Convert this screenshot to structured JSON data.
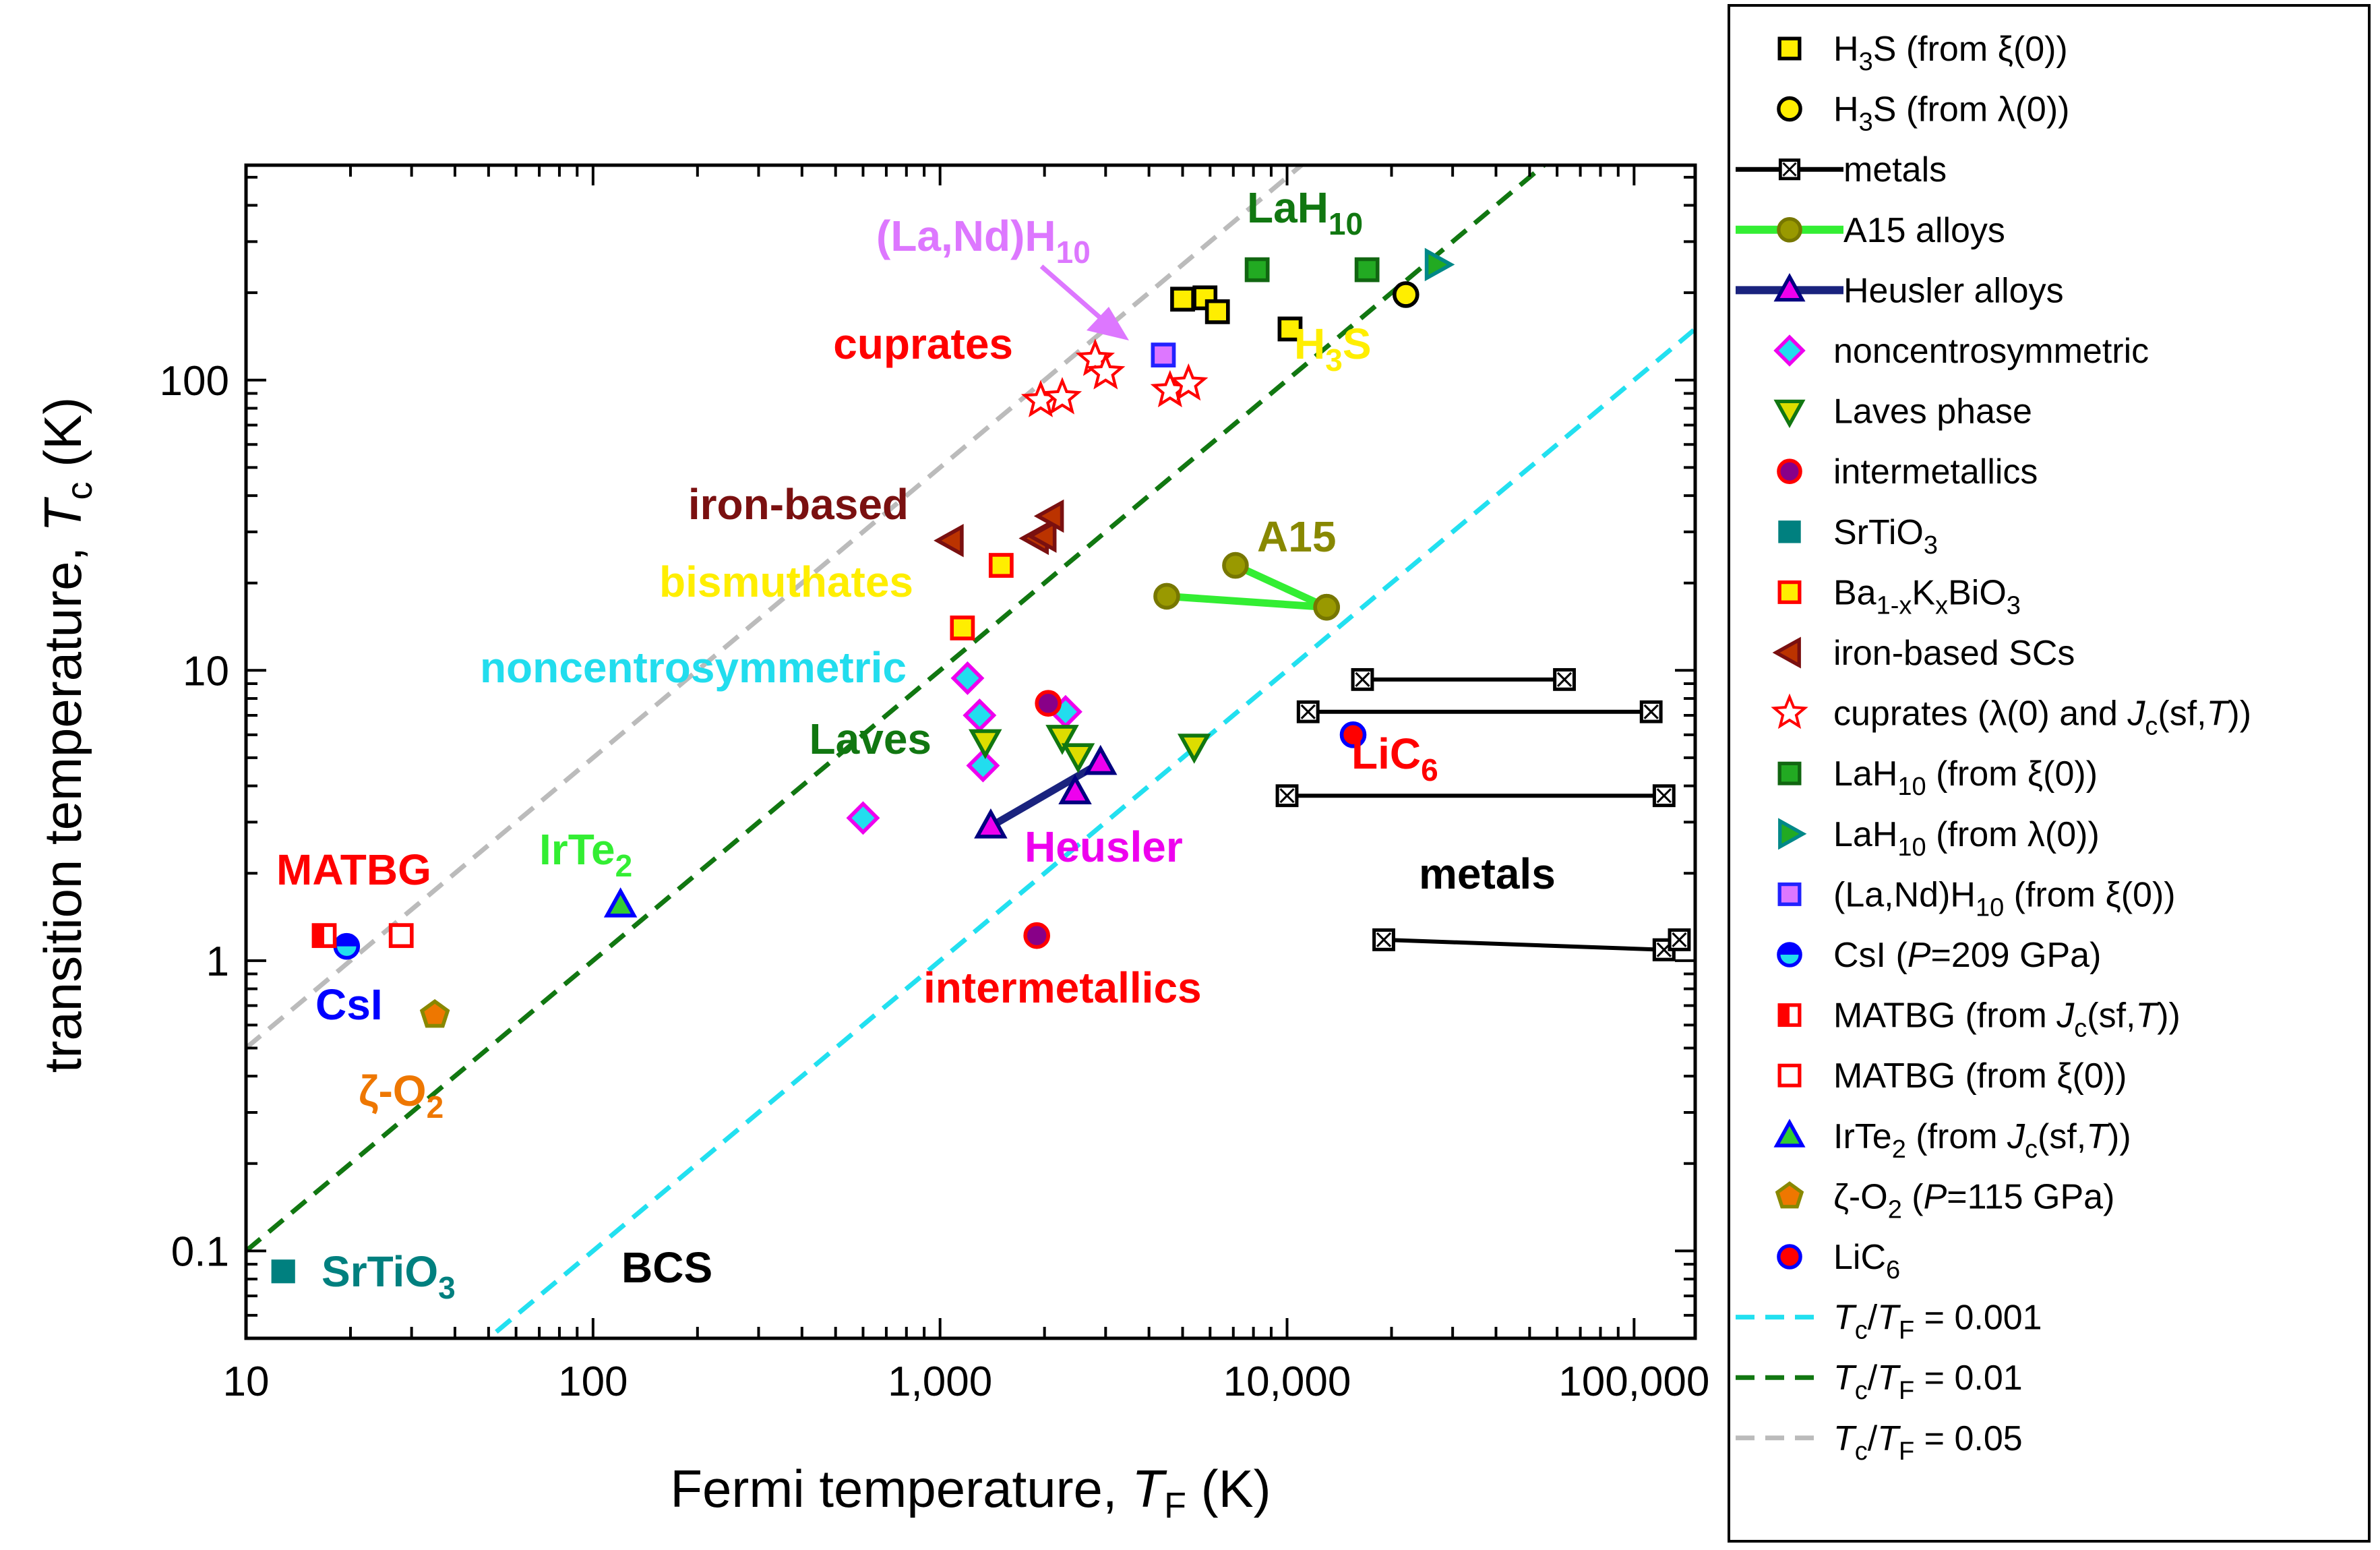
{
  "chart_data": {
    "type": "scatter",
    "xscale": "log",
    "yscale": "log",
    "xlim": [
      10,
      150000
    ],
    "ylim": [
      0.05,
      550
    ],
    "xlabel": "Fermi temperature, ",
    "xlabel_var": "T",
    "xlabel_sub": "F",
    "xlabel_unit": " (K)",
    "ylabel": "transition temperature, ",
    "ylabel_var": "T",
    "ylabel_sub": "c",
    "ylabel_unit": " (K)",
    "x_ticks": [
      {
        "value": 10,
        "label": "10"
      },
      {
        "value": 100,
        "label": "100"
      },
      {
        "value": 1000,
        "label": "1,000"
      },
      {
        "value": 10000,
        "label": "10,000"
      },
      {
        "value": 100000,
        "label": "100,000"
      }
    ],
    "y_ticks": [
      {
        "value": 0.1,
        "label": "0.1"
      },
      {
        "value": 1,
        "label": "1"
      },
      {
        "value": 10,
        "label": "10"
      },
      {
        "value": 100,
        "label": "100"
      }
    ],
    "reference_lines": [
      {
        "name": "Tc/TF = 0.001",
        "ratio": 0.001,
        "color": "#22e0f0"
      },
      {
        "name": "Tc/TF = 0.01",
        "ratio": 0.01,
        "color": "#117711"
      },
      {
        "name": "Tc/TF = 0.05",
        "ratio": 0.05,
        "color": "#bbbbbb"
      }
    ],
    "series": [
      {
        "name": "H3S (from ξ(0))",
        "marker": "square",
        "fill": "#ffee00",
        "stroke": "#000000",
        "points": [
          [
            5000,
            190
          ],
          [
            5800,
            192
          ],
          [
            6300,
            172
          ],
          [
            10200,
            150
          ]
        ]
      },
      {
        "name": "H3S (from λ(0))",
        "marker": "circle",
        "fill": "#ffee00",
        "stroke": "#000000",
        "points": [
          [
            22000,
            197
          ]
        ]
      },
      {
        "name": "metals",
        "marker": "xsquare",
        "fill": "#ffffff",
        "stroke": "#000000",
        "line": true,
        "lineColor": "#000000",
        "segments": [
          [
            [
              16500,
              9.3
            ],
            [
              63000,
              9.3
            ]
          ],
          [
            [
              11500,
              7.2
            ],
            [
              112000,
              7.2
            ]
          ],
          [
            [
              10000,
              3.7
            ],
            [
              122000,
              3.7
            ]
          ],
          [
            [
              19000,
              1.18
            ],
            [
              122000,
              1.09
            ]
          ],
          [
            [
              122000,
              1.09
            ],
            [
              135000,
              1.18
            ]
          ]
        ]
      },
      {
        "name": "A15 alloys",
        "marker": "circle",
        "fill": "#999900",
        "stroke": "#777700",
        "line": true,
        "lineColor": "#33ee33",
        "segments": [
          [
            [
              4500,
              18
            ],
            [
              13000,
              16.5
            ]
          ],
          [
            [
              7100,
              23
            ],
            [
              13000,
              16.5
            ]
          ]
        ]
      },
      {
        "name": "Heusler alloys",
        "marker": "triangle-up",
        "fill": "#ee00ee",
        "stroke": "#000080",
        "line": true,
        "lineColor": "#1a237e",
        "segments": [
          [
            [
              1400,
              2.9
            ],
            [
              2900,
              4.8
            ]
          ]
        ],
        "points": [
          [
            2450,
            3.8
          ]
        ]
      },
      {
        "name": "noncentrosymmetric",
        "marker": "diamond",
        "fill": "#22ddee",
        "stroke": "#ee00ee",
        "points": [
          [
            600,
            3.1
          ],
          [
            1200,
            9.4
          ],
          [
            1300,
            7
          ],
          [
            1330,
            4.7
          ],
          [
            2300,
            7.2
          ]
        ]
      },
      {
        "name": "Laves phase",
        "marker": "triangle-down",
        "fill": "#dddd00",
        "stroke": "#117711",
        "points": [
          [
            1350,
            5.7
          ],
          [
            2250,
            5.9
          ],
          [
            2500,
            5.1
          ],
          [
            5400,
            5.5
          ]
        ]
      },
      {
        "name": "intermetallics",
        "marker": "circle",
        "fill": "#880088",
        "stroke": "#ff0000",
        "points": [
          [
            1900,
            1.22
          ],
          [
            2050,
            7.7
          ]
        ]
      },
      {
        "name": "SrTiO3",
        "marker": "square-solid",
        "fill": "#00807f",
        "stroke": "#00807f",
        "points": [
          [
            12.8,
            0.085
          ]
        ]
      },
      {
        "name": "Ba1-xKxBiO3",
        "marker": "square",
        "fill": "#ffee00",
        "stroke": "#ff0000",
        "points": [
          [
            1160,
            14
          ],
          [
            1500,
            23
          ]
        ]
      },
      {
        "name": "iron-based SCs",
        "marker": "triangle-left",
        "fill": "#bb3300",
        "stroke": "#7a1010",
        "points": [
          [
            1080,
            28
          ],
          [
            1900,
            28.5
          ],
          [
            2000,
            29
          ],
          [
            2100,
            34
          ]
        ]
      },
      {
        "name": "cuprates (λ(0) and Jc(sf,T))",
        "marker": "star",
        "fill": "#ffffff",
        "stroke": "#ff0000",
        "points": [
          [
            1950,
            85
          ],
          [
            2250,
            87
          ],
          [
            2800,
            118
          ],
          [
            3000,
            106
          ],
          [
            4600,
            92
          ],
          [
            5200,
            97
          ]
        ]
      },
      {
        "name": "LaH10 (from ξ(0))",
        "marker": "square",
        "fill": "#22aa22",
        "stroke": "#116611",
        "points": [
          [
            8200,
            240
          ],
          [
            17000,
            240
          ]
        ]
      },
      {
        "name": "LaH10 (from λ(0))",
        "marker": "triangle-right",
        "fill": "#22aa22",
        "stroke": "#008888",
        "points": [
          [
            27000,
            250
          ]
        ]
      },
      {
        "name": "(La,Nd)H10 (from ξ(0))",
        "marker": "square",
        "fill": "#dd77ff",
        "stroke": "#2222ff",
        "points": [
          [
            4400,
            122
          ]
        ]
      },
      {
        "name": "CsI (P=209 GPa)",
        "marker": "half-circle",
        "fill": "#22ddee",
        "stroke": "#0000ff",
        "points": [
          [
            19.5,
            1.12
          ]
        ]
      },
      {
        "name": "MATBG (from Jc(sf,T))",
        "marker": "half-square",
        "fill": "#ffffff",
        "stroke": "#ff0000",
        "points": [
          [
            16.8,
            1.22
          ]
        ]
      },
      {
        "name": "MATBG (from ξ(0))",
        "marker": "square",
        "fill": "#ffffff",
        "stroke": "#ff0000",
        "points": [
          [
            28,
            1.22
          ]
        ]
      },
      {
        "name": "IrTe2 (from Jc(sf,T))",
        "marker": "triangle-up",
        "fill": "#33cc33",
        "stroke": "#0000ff",
        "points": [
          [
            120,
            1.55
          ]
        ]
      },
      {
        "name": "ζ-O2 (P=115 GPa)",
        "marker": "pentagon",
        "fill": "#ee7700",
        "stroke": "#888800",
        "points": [
          [
            35,
            0.65
          ]
        ]
      },
      {
        "name": "LiC6",
        "marker": "circle",
        "fill": "#ff0000",
        "stroke": "#0000ff",
        "points": [
          [
            15500,
            6
          ]
        ]
      }
    ],
    "annotations": [
      {
        "text": "(La,Nd)H",
        "sub": "10",
        "color": "#dd77ff"
      },
      {
        "text": "LaH",
        "sub": "10",
        "color": "#117711"
      },
      {
        "text": "cuprates",
        "sub": "",
        "color": "#ff0000"
      },
      {
        "text": "H",
        "sub": "3",
        "text2": "S",
        "color": "#ffee00"
      },
      {
        "text": "iron-based",
        "sub": "",
        "color": "#7a1010"
      },
      {
        "text": "A15",
        "sub": "",
        "color": "#888800"
      },
      {
        "text": "bismuthates",
        "sub": "",
        "color": "#ffee00"
      },
      {
        "text": "noncentrosymmetric",
        "sub": "",
        "color": "#22ddee"
      },
      {
        "text": "Laves",
        "sub": "",
        "color": "#117711"
      },
      {
        "text": "LiC",
        "sub": "6",
        "color": "#ff0000"
      },
      {
        "text": "Heusler",
        "sub": "",
        "color": "#ee00ee"
      },
      {
        "text": "metals",
        "sub": "",
        "color": "#000000"
      },
      {
        "text": "MATBG",
        "sub": "",
        "color": "#ff0000"
      },
      {
        "text": "IrTe",
        "sub": "2",
        "color": "#33ee33"
      },
      {
        "text": "intermetallics",
        "sub": "",
        "color": "#ff0000"
      },
      {
        "text": "CsI",
        "sub": "",
        "color": "#0000ff"
      },
      {
        "text": "ζ-O",
        "sub": "2",
        "color": "#ee7700"
      },
      {
        "text": "SrTiO",
        "sub": "3",
        "color": "#00807f"
      },
      {
        "text": "BCS",
        "sub": "",
        "color": "#000000"
      }
    ],
    "legend": [
      {
        "marker": "square",
        "fill": "#ffee00",
        "stroke": "#000000",
        "parts": [
          [
            "H",
            ""
          ],
          [
            "3",
            "sub"
          ],
          [
            "S (from ξ(0))",
            ""
          ]
        ]
      },
      {
        "marker": "circle",
        "fill": "#ffee00",
        "stroke": "#000000",
        "parts": [
          [
            "H",
            ""
          ],
          [
            "3",
            "sub"
          ],
          [
            "S (from λ(0))",
            ""
          ]
        ]
      },
      {
        "marker": "xsquare",
        "fill": "#ffffff",
        "stroke": "#000000",
        "line": "#000000",
        "parts": [
          [
            "metals",
            ""
          ]
        ]
      },
      {
        "marker": "circle",
        "fill": "#999900",
        "stroke": "#777700",
        "line": "#33ee33",
        "parts": [
          [
            "A15 alloys",
            ""
          ]
        ]
      },
      {
        "marker": "triangle-up",
        "fill": "#ee00ee",
        "stroke": "#000080",
        "line": "#1a237e",
        "parts": [
          [
            "Heusler alloys",
            ""
          ]
        ]
      },
      {
        "marker": "diamond",
        "fill": "#22ddee",
        "stroke": "#ee00ee",
        "parts": [
          [
            "noncentrosymmetric",
            ""
          ]
        ]
      },
      {
        "marker": "triangle-down",
        "fill": "#dddd00",
        "stroke": "#117711",
        "parts": [
          [
            "Laves phase",
            ""
          ]
        ]
      },
      {
        "marker": "circle",
        "fill": "#880088",
        "stroke": "#ff0000",
        "parts": [
          [
            " intermetallics",
            ""
          ]
        ]
      },
      {
        "marker": "square-solid",
        "fill": "#00807f",
        "stroke": "#00807f",
        "parts": [
          [
            "SrTiO",
            ""
          ],
          [
            "3",
            "sub"
          ]
        ]
      },
      {
        "marker": "square",
        "fill": "#ffee00",
        "stroke": "#ff0000",
        "parts": [
          [
            " Ba",
            ""
          ],
          [
            "1-x",
            "sub"
          ],
          [
            "K",
            ""
          ],
          [
            "x",
            "sub"
          ],
          [
            "BiO",
            ""
          ],
          [
            "3",
            "sub"
          ]
        ]
      },
      {
        "marker": "triangle-left",
        "fill": "#bb3300",
        "stroke": "#7a1010",
        "parts": [
          [
            "iron-based SCs",
            ""
          ]
        ]
      },
      {
        "marker": "star",
        "fill": "#ffffff",
        "stroke": "#ff0000",
        "parts": [
          [
            "cuprates (λ(0) and ",
            ""
          ],
          [
            "J",
            "it"
          ],
          [
            "c",
            "sub"
          ],
          [
            "(sf,",
            ""
          ],
          [
            "T",
            "it"
          ],
          [
            "))",
            ""
          ]
        ]
      },
      {
        "marker": "square",
        "fill": "#22aa22",
        "stroke": "#116611",
        "parts": [
          [
            "LaH",
            ""
          ],
          [
            "10",
            "sub"
          ],
          [
            " (from ξ(0))",
            ""
          ]
        ]
      },
      {
        "marker": "triangle-right",
        "fill": "#22aa22",
        "stroke": "#008888",
        "parts": [
          [
            "LaH",
            ""
          ],
          [
            "10",
            "sub"
          ],
          [
            " (from λ(0))",
            ""
          ]
        ]
      },
      {
        "marker": "square",
        "fill": "#dd77ff",
        "stroke": "#2222ff",
        "parts": [
          [
            "(La,Nd)H",
            ""
          ],
          [
            "10",
            "sub"
          ],
          [
            " (from ξ(0))",
            ""
          ]
        ]
      },
      {
        "marker": "half-circle",
        "fill": "#22ddee",
        "stroke": "#0000ff",
        "parts": [
          [
            "CsI (",
            ""
          ],
          [
            "P",
            "it"
          ],
          [
            "=209 GPa)",
            ""
          ]
        ]
      },
      {
        "marker": "half-square",
        "fill": "#ffffff",
        "stroke": "#ff0000",
        "parts": [
          [
            "MATBG (from ",
            ""
          ],
          [
            "J",
            "it"
          ],
          [
            "c",
            "sub"
          ],
          [
            "(sf,",
            ""
          ],
          [
            "T",
            "it"
          ],
          [
            "))",
            ""
          ]
        ]
      },
      {
        "marker": "square",
        "fill": "#ffffff",
        "stroke": "#ff0000",
        "parts": [
          [
            "MATBG (from ξ(0))",
            ""
          ]
        ]
      },
      {
        "marker": "triangle-up",
        "fill": "#33cc33",
        "stroke": "#0000ff",
        "parts": [
          [
            "IrTe",
            ""
          ],
          [
            "2",
            "sub"
          ],
          [
            " (from ",
            ""
          ],
          [
            "J",
            "it"
          ],
          [
            "c",
            "sub"
          ],
          [
            "(sf,",
            ""
          ],
          [
            "T",
            "it"
          ],
          [
            "))",
            ""
          ]
        ]
      },
      {
        "marker": "pentagon",
        "fill": "#ee7700",
        "stroke": "#888800",
        "parts": [
          [
            "ζ-O",
            ""
          ],
          [
            "2",
            "sub"
          ],
          [
            " (",
            ""
          ],
          [
            "P",
            "it"
          ],
          [
            "=115 GPa)",
            ""
          ]
        ]
      },
      {
        "marker": "circle",
        "fill": "#ff0000",
        "stroke": "#0000ff",
        "parts": [
          [
            "LiC",
            ""
          ],
          [
            "6",
            "sub"
          ]
        ]
      },
      {
        "marker": "dash",
        "line": "#22e0f0",
        "parts": [
          [
            "T",
            "it"
          ],
          [
            "c",
            "sub"
          ],
          [
            "/",
            ""
          ],
          [
            "T",
            "it"
          ],
          [
            "F",
            "sub"
          ],
          [
            " = 0.001",
            ""
          ]
        ]
      },
      {
        "marker": "dash",
        "line": "#117711",
        "parts": [
          [
            "T",
            "it"
          ],
          [
            "c",
            "sub"
          ],
          [
            "/",
            ""
          ],
          [
            "T",
            "it"
          ],
          [
            "F",
            "sub"
          ],
          [
            " = 0.01",
            ""
          ]
        ]
      },
      {
        "marker": "dash",
        "line": "#bbbbbb",
        "parts": [
          [
            "T",
            "it"
          ],
          [
            "c",
            "sub"
          ],
          [
            "/",
            ""
          ],
          [
            "T",
            "it"
          ],
          [
            "F",
            "sub"
          ],
          [
            " = 0.05",
            ""
          ]
        ]
      }
    ]
  }
}
